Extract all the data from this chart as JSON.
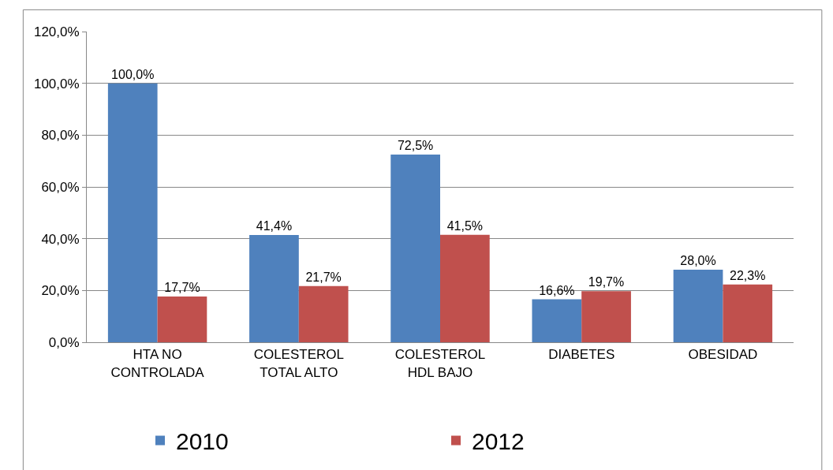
{
  "chart_data": {
    "type": "bar",
    "categories": [
      "HTA NO CONTROLADA",
      "COLESTEROL TOTAL ALTO",
      "COLESTEROL HDL BAJO",
      "DIABETES",
      "OBESIDAD"
    ],
    "series": [
      {
        "name": "2010",
        "color": "#4f81bd",
        "values": [
          100.0,
          41.4,
          72.5,
          16.6,
          28.0
        ],
        "value_labels": [
          "100,0%",
          "41,4%",
          "72,5%",
          "16,6%",
          "28,0%"
        ]
      },
      {
        "name": "2012",
        "color": "#c0504d",
        "values": [
          17.7,
          21.7,
          41.5,
          19.7,
          22.3
        ],
        "value_labels": [
          "17,7%",
          "21,7%",
          "41,5%",
          "19,7%",
          "22,3%"
        ]
      }
    ],
    "ylim": [
      0,
      120
    ],
    "yticks": [
      {
        "value": 0,
        "label": "0,0%"
      },
      {
        "value": 20,
        "label": "20,0%"
      },
      {
        "value": 40,
        "label": "40,0%"
      },
      {
        "value": 60,
        "label": "60,0%"
      },
      {
        "value": 80,
        "label": "80,0%"
      },
      {
        "value": 100,
        "label": "100,0%"
      },
      {
        "value": 120,
        "label": "120,0%"
      }
    ],
    "grid": "y",
    "legend": "bottom"
  }
}
